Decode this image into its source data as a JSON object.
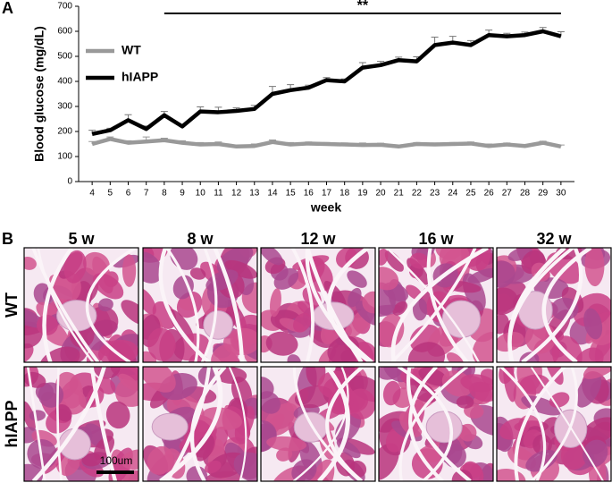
{
  "panel_labels": [
    "A",
    "B"
  ],
  "chart_data": {
    "type": "line",
    "ylabel": "Blood glucose (mg/dL)",
    "xlabel": "week",
    "x": [
      4,
      5,
      6,
      7,
      8,
      9,
      10,
      11,
      12,
      13,
      14,
      15,
      16,
      17,
      18,
      19,
      20,
      21,
      22,
      23,
      24,
      25,
      26,
      27,
      28,
      29,
      30
    ],
    "series": [
      {
        "name": "WT",
        "color": "#999999",
        "values": [
          150,
          170,
          155,
          160,
          165,
          155,
          148,
          150,
          140,
          142,
          158,
          148,
          152,
          150,
          148,
          146,
          147,
          140,
          150,
          148,
          150,
          152,
          142,
          148,
          142,
          155,
          140
        ],
        "errors": [
          10,
          8,
          8,
          18,
          8,
          8,
          8,
          8,
          6,
          8,
          8,
          8,
          6,
          6,
          6,
          8,
          6,
          6,
          6,
          6,
          6,
          6,
          8,
          6,
          6,
          6,
          6
        ]
      },
      {
        "name": "hIAPP",
        "color": "#000000",
        "values": [
          190,
          205,
          245,
          210,
          265,
          220,
          280,
          277,
          282,
          290,
          350,
          365,
          375,
          405,
          400,
          455,
          465,
          485,
          480,
          545,
          555,
          545,
          585,
          580,
          585,
          600,
          580
        ],
        "errors": [
          15,
          8,
          22,
          12,
          15,
          8,
          18,
          20,
          12,
          14,
          30,
          22,
          10,
          10,
          10,
          20,
          15,
          12,
          18,
          32,
          25,
          18,
          20,
          12,
          12,
          15,
          18
        ]
      }
    ],
    "xlim": [
      3.25,
      30.75
    ],
    "xticks": [
      4,
      5,
      6,
      7,
      8,
      9,
      10,
      11,
      12,
      13,
      14,
      15,
      16,
      17,
      18,
      19,
      20,
      21,
      22,
      23,
      24,
      25,
      26,
      27,
      28,
      29,
      30
    ],
    "ylim": [
      0,
      700
    ],
    "yticks": [
      0,
      100,
      200,
      300,
      400,
      500,
      600,
      700
    ],
    "legend": "upper left",
    "significance": {
      "label": "**",
      "x": [
        8,
        30
      ]
    }
  },
  "histology": {
    "columns": [
      "5 w",
      "8 w",
      "12 w",
      "16 w",
      "32 w"
    ],
    "rows": [
      "WT",
      "hIAPP"
    ],
    "scale_bar": "100um"
  }
}
